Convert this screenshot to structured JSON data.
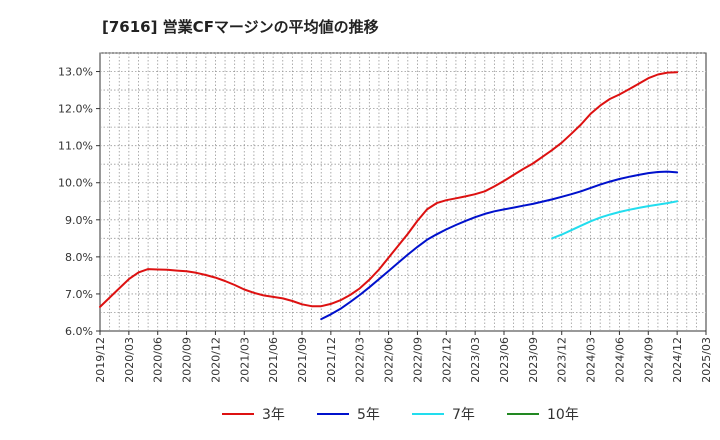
{
  "chart_data": {
    "type": "line",
    "title": "[7616]  営業CFマージンの平均値の推移",
    "xlabel": "",
    "ylabel": "",
    "x_ticks": [
      "2019/12",
      "2020/03",
      "2020/06",
      "2020/09",
      "2020/12",
      "2021/03",
      "2021/06",
      "2021/09",
      "2021/12",
      "2022/03",
      "2022/06",
      "2022/09",
      "2022/12",
      "2023/03",
      "2023/06",
      "2023/09",
      "2023/12",
      "2024/03",
      "2024/06",
      "2024/09",
      "2024/12",
      "2025/03"
    ],
    "y_ticks": [
      "6.0%",
      "7.0%",
      "8.0%",
      "9.0%",
      "10.0%",
      "11.0%",
      "12.0%",
      "13.0%"
    ],
    "ylim": [
      6.0,
      13.5
    ],
    "grid": true,
    "legend_position": "bottom",
    "series": [
      {
        "name": "3年",
        "color": "#dd1111",
        "points": [
          [
            "2019/12",
            6.65
          ],
          [
            "2020/01",
            6.9
          ],
          [
            "2020/02",
            7.15
          ],
          [
            "2020/03",
            7.4
          ],
          [
            "2020/04",
            7.58
          ],
          [
            "2020/05",
            7.67
          ],
          [
            "2020/06",
            7.66
          ],
          [
            "2020/07",
            7.65
          ],
          [
            "2020/08",
            7.63
          ],
          [
            "2020/09",
            7.61
          ],
          [
            "2020/10",
            7.57
          ],
          [
            "2020/11",
            7.51
          ],
          [
            "2020/12",
            7.44
          ],
          [
            "2021/01",
            7.35
          ],
          [
            "2021/02",
            7.24
          ],
          [
            "2021/03",
            7.12
          ],
          [
            "2021/04",
            7.03
          ],
          [
            "2021/05",
            6.96
          ],
          [
            "2021/06",
            6.92
          ],
          [
            "2021/07",
            6.88
          ],
          [
            "2021/08",
            6.81
          ],
          [
            "2021/09",
            6.72
          ],
          [
            "2021/10",
            6.67
          ],
          [
            "2021/11",
            6.67
          ],
          [
            "2021/12",
            6.73
          ],
          [
            "2022/01",
            6.83
          ],
          [
            "2022/02",
            6.97
          ],
          [
            "2022/03",
            7.15
          ],
          [
            "2022/04",
            7.38
          ],
          [
            "2022/05",
            7.66
          ],
          [
            "2022/06",
            7.98
          ],
          [
            "2022/07",
            8.3
          ],
          [
            "2022/08",
            8.62
          ],
          [
            "2022/09",
            8.97
          ],
          [
            "2022/10",
            9.28
          ],
          [
            "2022/11",
            9.45
          ],
          [
            "2022/12",
            9.53
          ],
          [
            "2023/01",
            9.58
          ],
          [
            "2023/02",
            9.63
          ],
          [
            "2023/03",
            9.69
          ],
          [
            "2023/04",
            9.77
          ],
          [
            "2023/05",
            9.9
          ],
          [
            "2023/06",
            10.05
          ],
          [
            "2023/07",
            10.21
          ],
          [
            "2023/08",
            10.37
          ],
          [
            "2023/09",
            10.52
          ],
          [
            "2023/10",
            10.7
          ],
          [
            "2023/11",
            10.88
          ],
          [
            "2023/12",
            11.08
          ],
          [
            "2024/01",
            11.32
          ],
          [
            "2024/02",
            11.57
          ],
          [
            "2024/03",
            11.86
          ],
          [
            "2024/04",
            12.08
          ],
          [
            "2024/05",
            12.26
          ],
          [
            "2024/06",
            12.38
          ],
          [
            "2024/07",
            12.52
          ],
          [
            "2024/08",
            12.67
          ],
          [
            "2024/09",
            12.82
          ],
          [
            "2024/10",
            12.92
          ],
          [
            "2024/11",
            12.97
          ],
          [
            "2024/12",
            12.98
          ]
        ]
      },
      {
        "name": "5年",
        "color": "#0011cc",
        "points": [
          [
            "2021/11",
            6.32
          ],
          [
            "2021/12",
            6.45
          ],
          [
            "2022/01",
            6.6
          ],
          [
            "2022/02",
            6.78
          ],
          [
            "2022/03",
            6.97
          ],
          [
            "2022/04",
            7.18
          ],
          [
            "2022/05",
            7.4
          ],
          [
            "2022/06",
            7.62
          ],
          [
            "2022/07",
            7.84
          ],
          [
            "2022/08",
            8.06
          ],
          [
            "2022/09",
            8.27
          ],
          [
            "2022/10",
            8.46
          ],
          [
            "2022/11",
            8.61
          ],
          [
            "2022/12",
            8.74
          ],
          [
            "2023/01",
            8.86
          ],
          [
            "2023/02",
            8.97
          ],
          [
            "2023/03",
            9.07
          ],
          [
            "2023/04",
            9.16
          ],
          [
            "2023/05",
            9.23
          ],
          [
            "2023/06",
            9.28
          ],
          [
            "2023/07",
            9.33
          ],
          [
            "2023/08",
            9.38
          ],
          [
            "2023/09",
            9.43
          ],
          [
            "2023/10",
            9.49
          ],
          [
            "2023/11",
            9.55
          ],
          [
            "2023/12",
            9.62
          ],
          [
            "2024/01",
            9.69
          ],
          [
            "2024/02",
            9.77
          ],
          [
            "2024/03",
            9.86
          ],
          [
            "2024/04",
            9.95
          ],
          [
            "2024/05",
            10.03
          ],
          [
            "2024/06",
            10.1
          ],
          [
            "2024/07",
            10.16
          ],
          [
            "2024/08",
            10.21
          ],
          [
            "2024/09",
            10.26
          ],
          [
            "2024/10",
            10.29
          ],
          [
            "2024/11",
            10.3
          ],
          [
            "2024/12",
            10.28
          ]
        ]
      },
      {
        "name": "7年",
        "color": "#22ddee",
        "points": [
          [
            "2023/11",
            8.5
          ],
          [
            "2023/12",
            8.6
          ],
          [
            "2024/01",
            8.72
          ],
          [
            "2024/02",
            8.84
          ],
          [
            "2024/03",
            8.96
          ],
          [
            "2024/04",
            9.06
          ],
          [
            "2024/05",
            9.14
          ],
          [
            "2024/06",
            9.21
          ],
          [
            "2024/07",
            9.27
          ],
          [
            "2024/08",
            9.32
          ],
          [
            "2024/09",
            9.37
          ],
          [
            "2024/10",
            9.41
          ],
          [
            "2024/11",
            9.45
          ],
          [
            "2024/12",
            9.5
          ]
        ]
      },
      {
        "name": "10年",
        "color": "#228822",
        "points": []
      }
    ]
  }
}
